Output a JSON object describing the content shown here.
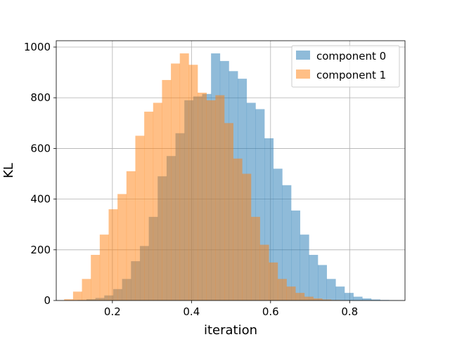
{
  "chart_data": {
    "type": "bar",
    "title": "",
    "xlabel": "iteration",
    "ylabel": "KL",
    "xlim": [
      0.058,
      0.94
    ],
    "ylim": [
      0,
      1025
    ],
    "grid": true,
    "legend_placement": "top-right",
    "x_ticks": [
      0.2,
      0.4,
      0.6,
      0.8
    ],
    "y_ticks": [
      0,
      200,
      400,
      600,
      800,
      1000
    ],
    "series": [
      {
        "name": "component 0",
        "color": "#1f77b4",
        "alpha": 0.5,
        "bin_edges": [
          0.112,
          0.1345,
          0.157,
          0.1795,
          0.202,
          0.2245,
          0.247,
          0.2695,
          0.292,
          0.3145,
          0.337,
          0.3595,
          0.382,
          0.4045,
          0.427,
          0.4495,
          0.472,
          0.4945,
          0.517,
          0.5395,
          0.562,
          0.5845,
          0.607,
          0.6295,
          0.652,
          0.6745,
          0.697,
          0.7195,
          0.742,
          0.7645,
          0.787,
          0.8095,
          0.832,
          0.8545,
          0.877,
          0.8995,
          0.922
        ],
        "counts": [
          2,
          5,
          10,
          20,
          45,
          85,
          155,
          215,
          330,
          490,
          570,
          660,
          790,
          805,
          815,
          975,
          945,
          905,
          875,
          780,
          755,
          640,
          520,
          455,
          355,
          260,
          180,
          140,
          85,
          55,
          30,
          15,
          8,
          4,
          2,
          1
        ]
      },
      {
        "name": "component 1",
        "color": "#ff7f0e",
        "alpha": 0.5,
        "bin_edges": [
          0.078,
          0.1005,
          0.123,
          0.1455,
          0.168,
          0.1905,
          0.213,
          0.2355,
          0.258,
          0.2805,
          0.303,
          0.3255,
          0.348,
          0.3705,
          0.393,
          0.4155,
          0.438,
          0.4605,
          0.483,
          0.5055,
          0.528,
          0.5505,
          0.573,
          0.5955,
          0.618,
          0.6405,
          0.663,
          0.6855,
          0.708,
          0.7305,
          0.753,
          0.7755,
          0.798,
          0.8205,
          0.843,
          0.8655,
          0.888
        ],
        "counts": [
          5,
          35,
          85,
          180,
          260,
          360,
          420,
          510,
          650,
          745,
          780,
          870,
          935,
          975,
          930,
          820,
          790,
          810,
          700,
          560,
          500,
          330,
          220,
          150,
          85,
          55,
          30,
          15,
          8,
          4,
          2,
          1,
          0,
          0,
          0,
          0
        ]
      }
    ]
  }
}
